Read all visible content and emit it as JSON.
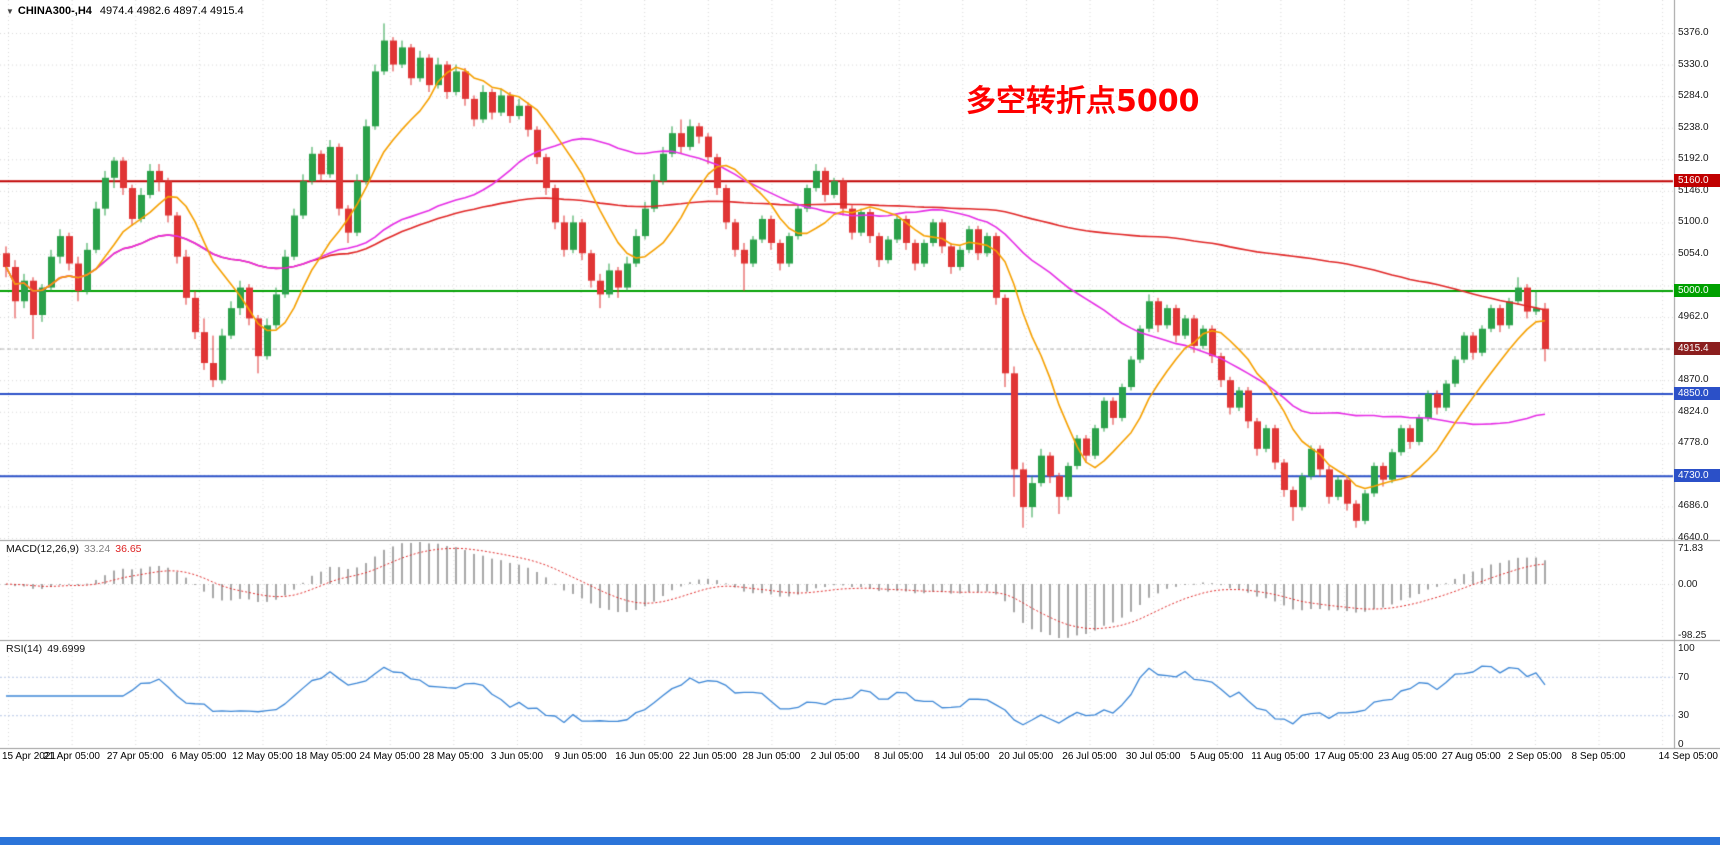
{
  "header": {
    "expander_icon": "▼",
    "symbol": "CHINA300-,H4",
    "ohlc": "4974.4 4982.6 4897.4 4915.4"
  },
  "annotation": {
    "text": "多空转折点5000",
    "color": "#ff0000"
  },
  "indicators": {
    "macd_name": "MACD(12,26,9)",
    "macd_main": "33.24",
    "macd_signal": "36.65",
    "rsi_name": "RSI(14)",
    "rsi_value": "49.6999"
  },
  "taskbar": {
    "color": "#2b74d9"
  },
  "chart_data": {
    "type": "candlestick",
    "symbol": "CHINA300-",
    "timeframe": "H4",
    "title": "CHINA300-,H4",
    "current_candle": {
      "open": 4974.4,
      "high": 4982.6,
      "low": 4897.4,
      "close": 4915.4
    },
    "price_axis": {
      "min": 4640.0,
      "max": 5376.0,
      "step": 46.0,
      "visible_labels": [
        5376.0,
        5330.0,
        5284.0,
        5238.0,
        5192.0,
        5146.0,
        5100.0,
        5054.0,
        4962.0,
        4870.0,
        4824.0,
        4778.0,
        4686.0,
        4640.0
      ]
    },
    "time_labels": [
      "15 Apr 2021",
      "21 Apr 05:00",
      "27 Apr 05:00",
      "6 May 05:00",
      "12 May 05:00",
      "18 May 05:00",
      "24 May 05:00",
      "28 May 05:00",
      "3 Jun 05:00",
      "9 Jun 05:00",
      "16 Jun 05:00",
      "22 Jun 05:00",
      "28 Jun 05:00",
      "2 Jul 05:00",
      "8 Jul 05:00",
      "14 Jul 05:00",
      "20 Jul 05:00",
      "26 Jul 05:00",
      "30 Jul 05:00",
      "5 Aug 05:00",
      "11 Aug 05:00",
      "17 Aug 05:00",
      "23 Aug 05:00",
      "27 Aug 05:00",
      "2 Sep 05:00",
      "8 Sep 05:00",
      "14 Sep 05:00"
    ],
    "hlines": [
      {
        "price": 5160.0,
        "label": "5160.0",
        "color": "#c00000"
      },
      {
        "price": 5000.0,
        "label": "5000.0",
        "color": "#00a000"
      },
      {
        "price": 4850.0,
        "label": "4850.0",
        "color": "#2b50c8"
      },
      {
        "price": 4730.0,
        "label": "4730.0",
        "color": "#2b50c8"
      }
    ],
    "current_price_line": {
      "price": 4915.4,
      "label": "4915.4",
      "badge_color": "#8b1e1e",
      "line_color": "#b0b0b0"
    },
    "moving_averages": [
      {
        "period": 10,
        "color": "#f5a000",
        "name": "ma-fast-orange"
      },
      {
        "period": 34,
        "color": "#e52ee5",
        "name": "ma-mid-magenta"
      },
      {
        "period": 120,
        "color": "#e02828",
        "name": "ma-slow-red"
      }
    ],
    "macd": {
      "params": "12,26,9",
      "main_value": 33.24,
      "signal_value": 36.65,
      "axis_labels": [
        {
          "text": "71.83",
          "value": 71.83
        },
        {
          "text": "0.00",
          "value": 0
        },
        {
          "text": "-98.25",
          "value": -98.25
        }
      ],
      "histogram_color": "#a8a8a8",
      "signal_color": "#e03030"
    },
    "rsi": {
      "period": 14,
      "value": 49.6999,
      "axis_labels": [
        {
          "text": "100",
          "value": 100
        },
        {
          "text": "70",
          "value": 70
        },
        {
          "text": "30",
          "value": 30
        },
        {
          "text": "0",
          "value": 0
        }
      ],
      "levels": [
        70,
        30
      ],
      "line_color": "#3d87d6",
      "level_color": "#b9c9e6"
    },
    "colors": {
      "up": "#2aa14a",
      "down": "#e03535",
      "grid": "#d8d8d8",
      "separator": "#9a9a9a"
    },
    "ohlc": [
      [
        5055,
        5065,
        5020,
        5035
      ],
      [
        5035,
        5045,
        4960,
        4985
      ],
      [
        4985,
        5025,
        4975,
        5015
      ],
      [
        5015,
        5020,
        4930,
        4965
      ],
      [
        4965,
        5010,
        4955,
        5005
      ],
      [
        5005,
        5060,
        5000,
        5050
      ],
      [
        5050,
        5090,
        5040,
        5080
      ],
      [
        5080,
        5085,
        5030,
        5040
      ],
      [
        5040,
        5050,
        4985,
        5000
      ],
      [
        5000,
        5070,
        4995,
        5060
      ],
      [
        5060,
        5130,
        5055,
        5120
      ],
      [
        5120,
        5175,
        5110,
        5165
      ],
      [
        5165,
        5195,
        5150,
        5190
      ],
      [
        5190,
        5195,
        5140,
        5150
      ],
      [
        5150,
        5155,
        5095,
        5105
      ],
      [
        5105,
        5150,
        5100,
        5140
      ],
      [
        5140,
        5185,
        5135,
        5175
      ],
      [
        5175,
        5185,
        5145,
        5160
      ],
      [
        5160,
        5165,
        5100,
        5110
      ],
      [
        5110,
        5115,
        5040,
        5050
      ],
      [
        5050,
        5060,
        4980,
        4990
      ],
      [
        4990,
        5000,
        4930,
        4940
      ],
      [
        4940,
        4960,
        4885,
        4895
      ],
      [
        4895,
        4935,
        4860,
        4870
      ],
      [
        4870,
        4945,
        4865,
        4935
      ],
      [
        4935,
        4985,
        4930,
        4975
      ],
      [
        4975,
        5015,
        4965,
        5005
      ],
      [
        5005,
        5010,
        4950,
        4960
      ],
      [
        4960,
        4965,
        4880,
        4905
      ],
      [
        4905,
        4960,
        4900,
        4950
      ],
      [
        4950,
        5005,
        4945,
        4995
      ],
      [
        4995,
        5060,
        4990,
        5050
      ],
      [
        5050,
        5120,
        5045,
        5110
      ],
      [
        5110,
        5170,
        5105,
        5160
      ],
      [
        5160,
        5210,
        5155,
        5200
      ],
      [
        5200,
        5205,
        5160,
        5170
      ],
      [
        5170,
        5220,
        5165,
        5210
      ],
      [
        5210,
        5215,
        5110,
        5120
      ],
      [
        5120,
        5125,
        5070,
        5085
      ],
      [
        5085,
        5170,
        5080,
        5160
      ],
      [
        5160,
        5250,
        5155,
        5240
      ],
      [
        5240,
        5330,
        5235,
        5320
      ],
      [
        5320,
        5390,
        5315,
        5365
      ],
      [
        5365,
        5370,
        5320,
        5330
      ],
      [
        5330,
        5365,
        5325,
        5355
      ],
      [
        5355,
        5360,
        5300,
        5310
      ],
      [
        5310,
        5350,
        5305,
        5340
      ],
      [
        5340,
        5345,
        5290,
        5300
      ],
      [
        5300,
        5340,
        5295,
        5330
      ],
      [
        5330,
        5335,
        5280,
        5290
      ],
      [
        5290,
        5330,
        5285,
        5320
      ],
      [
        5320,
        5325,
        5270,
        5280
      ],
      [
        5280,
        5285,
        5240,
        5250
      ],
      [
        5250,
        5300,
        5245,
        5290
      ],
      [
        5290,
        5295,
        5250,
        5260
      ],
      [
        5260,
        5295,
        5255,
        5285
      ],
      [
        5285,
        5290,
        5245,
        5255
      ],
      [
        5255,
        5280,
        5250,
        5270
      ],
      [
        5270,
        5275,
        5225,
        5235
      ],
      [
        5235,
        5240,
        5185,
        5195
      ],
      [
        5195,
        5200,
        5140,
        5150
      ],
      [
        5150,
        5155,
        5090,
        5100
      ],
      [
        5100,
        5110,
        5050,
        5060
      ],
      [
        5060,
        5110,
        5055,
        5100
      ],
      [
        5100,
        5105,
        5045,
        5055
      ],
      [
        5055,
        5060,
        5005,
        5015
      ],
      [
        5015,
        5025,
        4975,
        4995
      ],
      [
        4995,
        5040,
        4990,
        5030
      ],
      [
        5030,
        5035,
        4990,
        5005
      ],
      [
        5005,
        5050,
        5000,
        5040
      ],
      [
        5040,
        5090,
        5035,
        5080
      ],
      [
        5080,
        5130,
        5075,
        5120
      ],
      [
        5120,
        5170,
        5115,
        5160
      ],
      [
        5160,
        5210,
        5155,
        5200
      ],
      [
        5200,
        5240,
        5195,
        5230
      ],
      [
        5230,
        5250,
        5200,
        5210
      ],
      [
        5210,
        5250,
        5205,
        5240
      ],
      [
        5240,
        5245,
        5215,
        5225
      ],
      [
        5225,
        5230,
        5185,
        5195
      ],
      [
        5195,
        5200,
        5140,
        5150
      ],
      [
        5150,
        5155,
        5090,
        5100
      ],
      [
        5100,
        5105,
        5050,
        5060
      ],
      [
        5060,
        5070,
        5000,
        5040
      ],
      [
        5040,
        5080,
        5035,
        5075
      ],
      [
        5075,
        5110,
        5070,
        5105
      ],
      [
        5105,
        5110,
        5060,
        5070
      ],
      [
        5070,
        5075,
        5030,
        5040
      ],
      [
        5040,
        5085,
        5035,
        5080
      ],
      [
        5080,
        5125,
        5075,
        5120
      ],
      [
        5120,
        5155,
        5115,
        5150
      ],
      [
        5150,
        5185,
        5145,
        5175
      ],
      [
        5175,
        5180,
        5130,
        5140
      ],
      [
        5140,
        5165,
        5135,
        5160
      ],
      [
        5160,
        5165,
        5110,
        5120
      ],
      [
        5120,
        5125,
        5075,
        5085
      ],
      [
        5085,
        5120,
        5080,
        5115
      ],
      [
        5115,
        5120,
        5070,
        5080
      ],
      [
        5080,
        5085,
        5035,
        5045
      ],
      [
        5045,
        5080,
        5040,
        5075
      ],
      [
        5075,
        5110,
        5070,
        5105
      ],
      [
        5105,
        5110,
        5060,
        5070
      ],
      [
        5070,
        5075,
        5030,
        5040
      ],
      [
        5040,
        5075,
        5035,
        5070
      ],
      [
        5070,
        5105,
        5065,
        5100
      ],
      [
        5100,
        5105,
        5055,
        5065
      ],
      [
        5065,
        5070,
        5025,
        5035
      ],
      [
        5035,
        5065,
        5030,
        5060
      ],
      [
        5060,
        5095,
        5055,
        5090
      ],
      [
        5090,
        5095,
        5045,
        5055
      ],
      [
        5055,
        5085,
        5050,
        5080
      ],
      [
        5080,
        5085,
        4980,
        4990
      ],
      [
        4990,
        4995,
        4860,
        4880
      ],
      [
        4880,
        4890,
        4700,
        4740
      ],
      [
        4740,
        4750,
        4655,
        4685
      ],
      [
        4685,
        4730,
        4670,
        4720
      ],
      [
        4720,
        4770,
        4715,
        4760
      ],
      [
        4760,
        4765,
        4720,
        4730
      ],
      [
        4730,
        4735,
        4675,
        4700
      ],
      [
        4700,
        4750,
        4695,
        4745
      ],
      [
        4745,
        4790,
        4740,
        4785
      ],
      [
        4785,
        4790,
        4750,
        4760
      ],
      [
        4760,
        4805,
        4755,
        4800
      ],
      [
        4800,
        4845,
        4795,
        4840
      ],
      [
        4840,
        4845,
        4805,
        4815
      ],
      [
        4815,
        4865,
        4810,
        4860
      ],
      [
        4860,
        4905,
        4855,
        4900
      ],
      [
        4900,
        4950,
        4895,
        4945
      ],
      [
        4945,
        4995,
        4940,
        4985
      ],
      [
        4985,
        4990,
        4940,
        4950
      ],
      [
        4950,
        4980,
        4945,
        4975
      ],
      [
        4975,
        4980,
        4925,
        4935
      ],
      [
        4935,
        4965,
        4930,
        4960
      ],
      [
        4960,
        4965,
        4910,
        4920
      ],
      [
        4920,
        4950,
        4915,
        4945
      ],
      [
        4945,
        4950,
        4895,
        4905
      ],
      [
        4905,
        4910,
        4860,
        4870
      ],
      [
        4870,
        4875,
        4820,
        4830
      ],
      [
        4830,
        4860,
        4825,
        4855
      ],
      [
        4855,
        4860,
        4800,
        4810
      ],
      [
        4810,
        4815,
        4760,
        4770
      ],
      [
        4770,
        4805,
        4765,
        4800
      ],
      [
        4800,
        4805,
        4740,
        4750
      ],
      [
        4750,
        4755,
        4700,
        4710
      ],
      [
        4710,
        4715,
        4665,
        4685
      ],
      [
        4685,
        4735,
        4680,
        4730
      ],
      [
        4730,
        4775,
        4725,
        4770
      ],
      [
        4770,
        4775,
        4730,
        4740
      ],
      [
        4740,
        4745,
        4690,
        4700
      ],
      [
        4700,
        4730,
        4695,
        4725
      ],
      [
        4725,
        4730,
        4680,
        4690
      ],
      [
        4690,
        4695,
        4655,
        4665
      ],
      [
        4665,
        4710,
        4660,
        4705
      ],
      [
        4705,
        4750,
        4700,
        4745
      ],
      [
        4745,
        4750,
        4715,
        4725
      ],
      [
        4725,
        4770,
        4720,
        4765
      ],
      [
        4765,
        4805,
        4760,
        4800
      ],
      [
        4800,
        4805,
        4770,
        4780
      ],
      [
        4780,
        4820,
        4775,
        4815
      ],
      [
        4815,
        4855,
        4810,
        4850
      ],
      [
        4850,
        4855,
        4820,
        4830
      ],
      [
        4830,
        4870,
        4825,
        4865
      ],
      [
        4865,
        4905,
        4860,
        4900
      ],
      [
        4900,
        4940,
        4895,
        4935
      ],
      [
        4935,
        4940,
        4900,
        4910
      ],
      [
        4910,
        4950,
        4905,
        4945
      ],
      [
        4945,
        4980,
        4940,
        4975
      ],
      [
        4975,
        4980,
        4940,
        4950
      ],
      [
        4950,
        4990,
        4945,
        4985
      ],
      [
        4985,
        5020,
        4980,
        5005
      ],
      [
        5005,
        5010,
        4960,
        4970
      ],
      [
        4970,
        5000,
        4965,
        4975
      ],
      [
        4974.4,
        4982.6,
        4897.4,
        4915.4
      ]
    ]
  }
}
